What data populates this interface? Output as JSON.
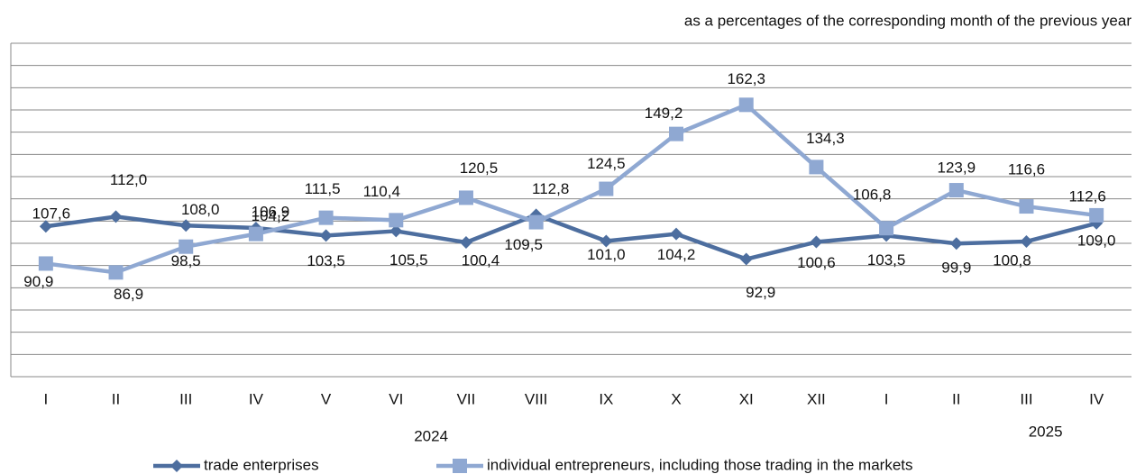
{
  "chart_data": {
    "type": "line",
    "subtitle": "as a percentages of the corresponding month of the previous year",
    "categories": [
      "I",
      "II",
      "III",
      "IV",
      "V",
      "VI",
      "VII",
      "VIII",
      "IX",
      "X",
      "XI",
      "XII",
      "I",
      "II",
      "III",
      "IV"
    ],
    "category_groups": [
      {
        "label": "2024",
        "from": 0,
        "to": 11
      },
      {
        "label": "2025",
        "from": 12,
        "to": 15
      }
    ],
    "series": [
      {
        "name": "trade enterprises",
        "color": "#4d6e9f",
        "marker": "diamond",
        "values": [
          107.6,
          112.0,
          108.0,
          106.9,
          103.5,
          105.5,
          100.4,
          112.8,
          101.0,
          104.2,
          92.9,
          100.6,
          103.5,
          99.9,
          100.8,
          109.0
        ],
        "value_labels": [
          "107,6",
          "112,0",
          "108,0",
          "106,9",
          "103,5",
          "105,5",
          "100,4",
          "112,8",
          "101,0",
          "104,2",
          "92,9",
          "100,6",
          "103,5",
          "99,9",
          "100,8",
          "109,0"
        ]
      },
      {
        "name": "individual entrepreneurs, including those trading in the markets",
        "color": "#8fa8d2",
        "marker": "square",
        "values": [
          90.9,
          86.9,
          98.5,
          104.2,
          111.5,
          110.4,
          120.5,
          109.5,
          124.5,
          149.2,
          162.3,
          134.3,
          106.8,
          123.9,
          116.6,
          112.6
        ],
        "value_labels": [
          "90,9",
          "86,9",
          "98,5",
          "104,2",
          "111,5",
          "110,4",
          "120,5",
          "109,5",
          "124,5",
          "149,2",
          "162,3",
          "134,3",
          "106,8",
          "123,9",
          "116,6",
          "112,6"
        ]
      }
    ],
    "ylim": [
      40,
      190
    ],
    "yticks": [
      40,
      50,
      60,
      70,
      80,
      90,
      100,
      110,
      120,
      130,
      140,
      150,
      160,
      170,
      180,
      190
    ],
    "grid": true,
    "legend": "bottom"
  }
}
